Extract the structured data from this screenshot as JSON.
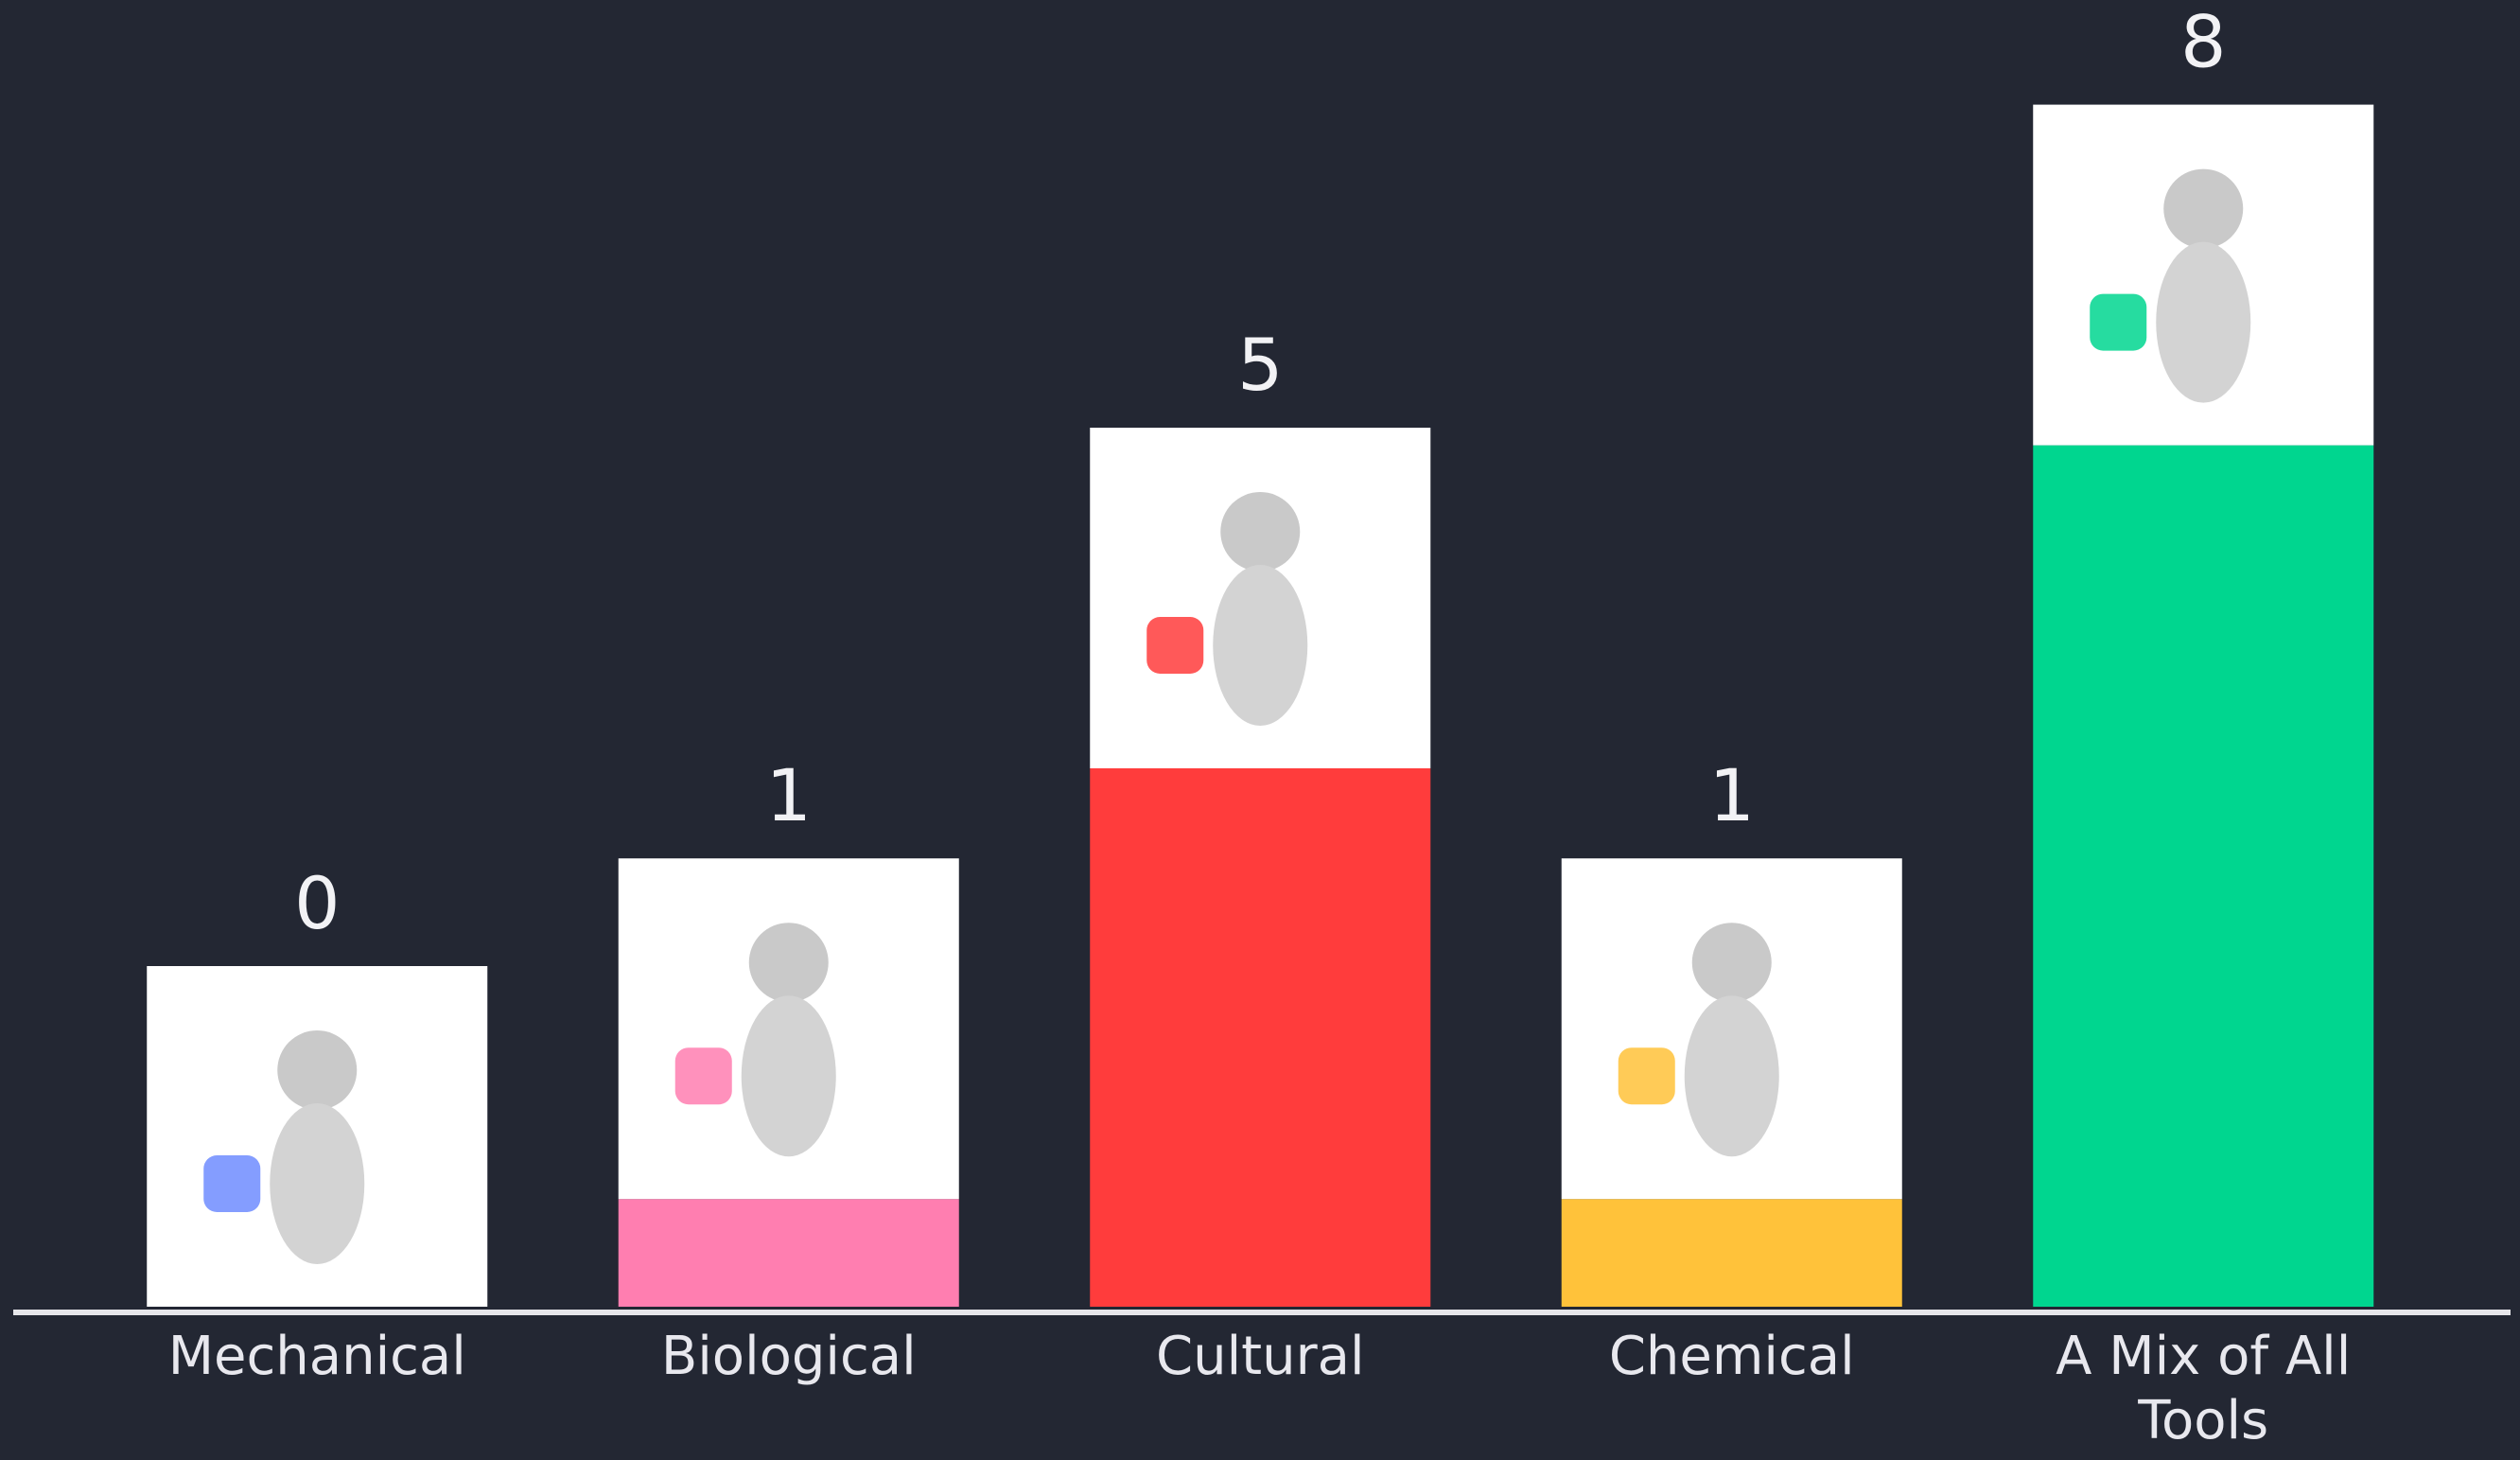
{
  "chart_data": {
    "type": "bar",
    "categories": [
      "Mechanical",
      "Biological",
      "Cultural",
      "Chemical",
      "A Mix of All Tools"
    ],
    "values": [
      0,
      1,
      5,
      1,
      8
    ],
    "colors": [
      "#6f8cff",
      "#ff7eb0",
      "#ff3c3c",
      "#ffc23a",
      "#00d68f"
    ],
    "ylim": [
      0,
      8
    ]
  }
}
